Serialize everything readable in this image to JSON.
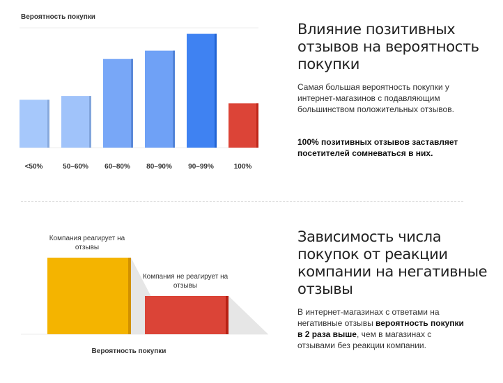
{
  "charts": {
    "top": {
      "ylabel": "Вероятность покупки"
    },
    "bottom": {
      "xlabel": "Вероятность покупки",
      "label_a": "Компания реагирует на отзывы",
      "label_b": "Компания не реагирует на отзывы"
    }
  },
  "section1": {
    "heading": "Влияние позитивных отзывов на вероятность покупки",
    "body": "Самая большая вероятность покупки у интернет-магазинов с подавляющим большинством положительных отзывов.",
    "emphasis": "100% позитивных отзывов заставляет посетителей сомневаться в них."
  },
  "section2": {
    "heading": "Зависимость числа покупок от реакции компании на негативные отзывы",
    "body_before": "В интернет-магазинах с ответами на негативные отзывы ",
    "body_bold": "вероятность покупки в 2 раза выше",
    "body_after": ", чем в магазинах с отзывами  без реакции компании."
  },
  "chart_data": [
    {
      "type": "bar",
      "title": "",
      "ylabel": "Вероятность покупки",
      "xlabel": "",
      "categories": [
        "<50%",
        "50–60%",
        "60–80%",
        "80–90%",
        "90–99%",
        "100%"
      ],
      "values": [
        40,
        43,
        74,
        81,
        95,
        37
      ],
      "ylim": [
        0,
        100
      ],
      "grid": false,
      "colors": [
        "#a6c8fb",
        "#a0c3fa",
        "#78a7f7",
        "#6fa1f6",
        "#3f82f2",
        "#dc4437"
      ]
    },
    {
      "type": "bar",
      "title": "",
      "xlabel": "Вероятность покупки",
      "categories": [
        "Компания реагирует на отзывы",
        "Компания не реагирует на отзывы"
      ],
      "values": [
        2,
        1
      ],
      "ylim": [
        0,
        2
      ],
      "colors": [
        "#f4b400",
        "#db4437"
      ]
    }
  ]
}
